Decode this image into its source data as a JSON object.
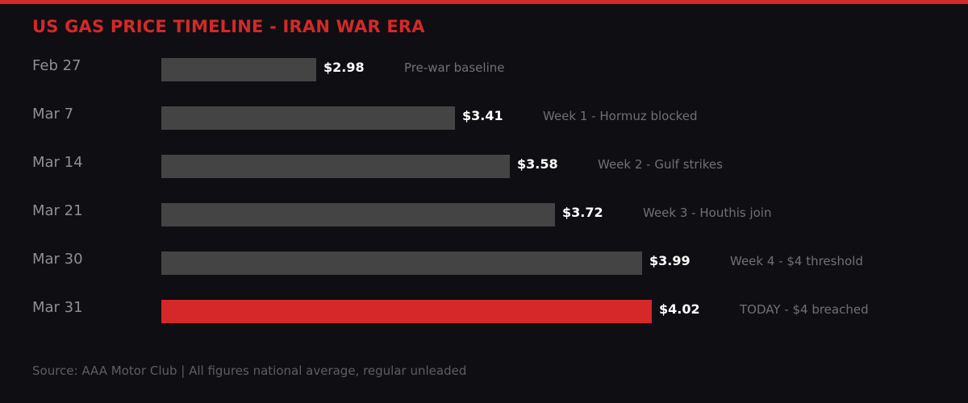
{
  "chart_data": {
    "type": "bar",
    "orientation": "horizontal",
    "title": "US GAS PRICE TIMELINE - IRAN WAR ERA",
    "categories": [
      "Feb 27",
      "Mar 7",
      "Mar 14",
      "Mar 21",
      "Mar 30",
      "Mar 31"
    ],
    "values": [
      2.98,
      3.41,
      3.58,
      3.72,
      3.99,
      4.02
    ],
    "value_labels": [
      "$2.98",
      "$3.41",
      "$3.58",
      "$3.72",
      "$3.99",
      "$4.02"
    ],
    "annotations": [
      "Pre-war baseline",
      "Week 1 - Hormuz blocked",
      "Week 2 - Gulf strikes",
      "Week 3 - Houthis join",
      "Week 4 - $4 threshold",
      "TODAY - $4 breached"
    ],
    "highlight_index": 5,
    "xlim": [
      2.5,
      4.02
    ],
    "grid": false,
    "colors": {
      "bar": "#444444",
      "highlight": "#d62828",
      "title": "#d62828",
      "background": "#0f0e12"
    }
  },
  "footer": {
    "source": "Source: AAA Motor Club | All figures national average, regular unleaded"
  }
}
